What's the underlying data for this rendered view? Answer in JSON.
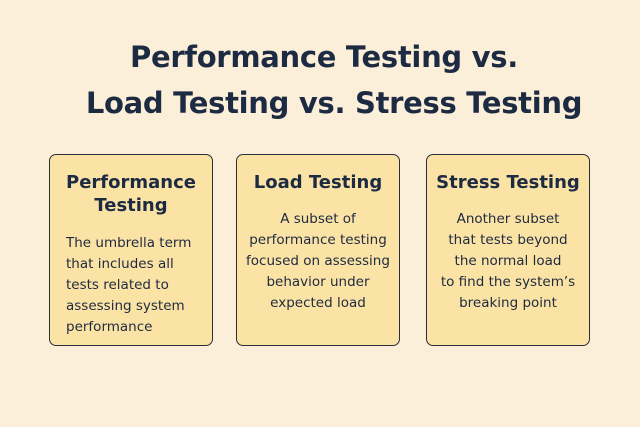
{
  "title": {
    "line1": "Performance  Testing vs.",
    "line2": "Load Testing vs. Stress Testing"
  },
  "cards": [
    {
      "title_lines": [
        "Performance",
        "Testing"
      ],
      "description_lines": [
        "The umbrella term",
        "that includes all",
        "tests related to",
        "assessing system",
        "performance"
      ]
    },
    {
      "title_lines": [
        "Load Testing"
      ],
      "description_lines": [
        "A subset of",
        "performance testing",
        "focused on assessing",
        "behavior under",
        "expected load"
      ]
    },
    {
      "title_lines": [
        "Stress Testing"
      ],
      "description_lines": [
        "Another subset",
        "that tests beyond",
        "the normal load",
        "to find the system’s",
        "breaking point"
      ]
    }
  ],
  "colors": {
    "background": "#fcefd9",
    "card_fill": "#fbe3a6",
    "card_border": "#2a2f3a",
    "text": "#1c2a42"
  }
}
